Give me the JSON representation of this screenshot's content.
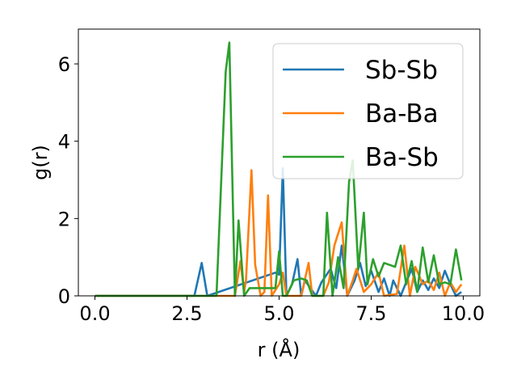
{
  "chart_data": {
    "type": "line",
    "xlabel": "r (Å)",
    "ylabel": "g(r)",
    "xlim": [
      -0.45,
      10.45
    ],
    "ylim": [
      0,
      6.9
    ],
    "xticks": [
      0.0,
      2.5,
      5.0,
      7.5,
      10.0
    ],
    "xtick_labels": [
      "0.0",
      "2.5",
      "5.0",
      "7.5",
      "10.0"
    ],
    "yticks": [
      0,
      2,
      4,
      6
    ],
    "ytick_labels": [
      "0",
      "2",
      "4",
      "6"
    ],
    "grid": false,
    "legend_position": "top-right",
    "series": [
      {
        "name": "Sb-Sb",
        "color": "#1f77b4",
        "x": [
          0.0,
          2.7,
          2.9,
          3.05,
          4.9,
          5.0,
          5.1,
          5.2,
          5.35,
          5.5,
          5.6,
          5.7,
          6.0,
          6.15,
          6.4,
          6.55,
          6.7,
          6.85,
          7.05,
          7.2,
          7.35,
          7.5,
          7.7,
          7.85,
          8.0,
          8.1,
          8.3,
          8.45,
          8.6,
          8.75,
          8.9,
          9.05,
          9.2,
          9.35,
          9.5,
          9.65,
          9.8,
          9.95
        ],
        "y": [
          0.0,
          0.0,
          0.85,
          0.0,
          0.6,
          0.55,
          3.3,
          0.0,
          0.3,
          0.95,
          0.0,
          0.4,
          0.0,
          0.35,
          0.7,
          0.2,
          1.3,
          0.0,
          0.4,
          0.85,
          0.25,
          0.65,
          0.1,
          0.45,
          0.0,
          0.4,
          0.0,
          0.35,
          0.7,
          0.1,
          0.4,
          0.15,
          0.45,
          0.2,
          0.65,
          0.3,
          0.0,
          0.1
        ]
      },
      {
        "name": "Ba-Ba",
        "color": "#ff7f0e",
        "x": [
          0.0,
          3.8,
          3.95,
          4.05,
          4.1,
          4.25,
          4.35,
          4.5,
          4.6,
          4.7,
          4.8,
          5.0,
          5.1,
          5.2,
          5.6,
          5.8,
          5.9,
          6.2,
          6.35,
          6.5,
          6.7,
          6.85,
          7.0,
          7.1,
          7.3,
          7.5,
          7.7,
          7.85,
          8.2,
          8.4,
          8.55,
          8.7,
          8.9,
          9.05,
          9.2,
          9.35,
          9.5,
          9.65,
          9.8,
          9.95
        ],
        "y": [
          0.0,
          0.0,
          0.9,
          0.1,
          0.4,
          3.25,
          0.8,
          0.0,
          0.1,
          2.6,
          0.0,
          0.3,
          0.6,
          0.0,
          0.0,
          0.85,
          0.0,
          0.0,
          0.35,
          1.3,
          1.9,
          0.0,
          0.4,
          0.7,
          0.1,
          0.3,
          0.6,
          0.0,
          0.05,
          1.3,
          0.0,
          0.75,
          0.3,
          0.4,
          0.15,
          0.6,
          0.0,
          0.35,
          0.1,
          0.3
        ]
      },
      {
        "name": "Ba-Sb",
        "color": "#2ca02c",
        "x": [
          0.0,
          3.3,
          3.55,
          3.65,
          3.8,
          3.9,
          4.05,
          4.2,
          4.9,
          5.0,
          5.1,
          5.2,
          5.4,
          5.6,
          5.75,
          5.9,
          6.2,
          6.3,
          6.45,
          6.6,
          6.75,
          6.9,
          7.0,
          7.15,
          7.3,
          7.4,
          7.55,
          7.7,
          7.85,
          8.0,
          8.15,
          8.3,
          8.45,
          8.6,
          8.75,
          8.9,
          9.05,
          9.2,
          9.35,
          9.5,
          9.65,
          9.8,
          9.95
        ],
        "y": [
          0.0,
          0.0,
          5.8,
          6.55,
          0.0,
          1.95,
          0.0,
          0.2,
          0.2,
          1.15,
          0.0,
          0.0,
          0.4,
          0.45,
          0.4,
          0.0,
          0.0,
          2.15,
          0.0,
          1.0,
          0.2,
          2.95,
          3.5,
          0.7,
          2.15,
          0.3,
          0.95,
          0.5,
          0.85,
          0.8,
          0.75,
          1.3,
          0.3,
          0.9,
          0.1,
          1.25,
          0.35,
          1.05,
          0.3,
          0.35,
          0.3,
          1.2,
          0.4
        ]
      }
    ]
  }
}
